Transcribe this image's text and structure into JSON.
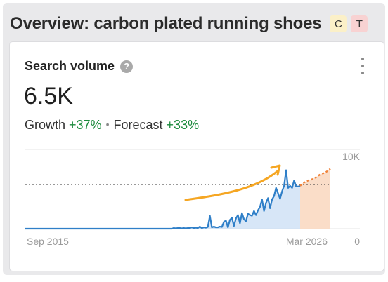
{
  "header": {
    "title": "Overview: carbon plated running shoes",
    "badges": [
      {
        "label": "C",
        "color": "#fbf0c8"
      },
      {
        "label": "T",
        "color": "#f8d2d2"
      }
    ]
  },
  "card": {
    "title": "Search volume",
    "help_icon": "question-circle-icon",
    "menu_icon": "kebab-menu-icon",
    "value": "6.5K",
    "growth_label": "Growth",
    "growth_value": "+37%",
    "forecast_label": "Forecast",
    "forecast_value": "+33%",
    "colors": {
      "positive": "#1b8a3c",
      "history_line": "#2f7fc8",
      "history_fill": "#c9def4",
      "forecast": "#f0843c",
      "forecast_fill": "#fad9c2",
      "trend_arrow": "#f5a623"
    }
  },
  "chart_data": {
    "type": "line",
    "x_start_label": "Sep 2015",
    "x_end_label": "Mar 2026",
    "y_tick_labels": [
      "10K",
      "0"
    ],
    "ylim": [
      0,
      10000
    ],
    "reference_line_value": 6500,
    "series": [
      {
        "values": [
          0,
          0,
          0,
          0,
          0,
          0,
          0,
          0,
          0,
          0,
          0,
          0,
          0,
          0,
          0,
          0,
          0,
          0,
          0,
          0,
          0,
          0,
          0,
          0,
          0,
          0,
          0,
          0,
          0,
          0,
          0,
          0,
          0,
          0,
          0,
          0,
          0,
          0,
          0,
          0,
          0,
          0,
          0,
          0,
          0,
          0,
          0,
          0,
          0,
          0,
          0,
          0,
          0,
          0,
          0,
          0,
          0,
          0,
          0,
          0,
          0,
          0,
          0,
          0,
          0,
          0,
          0,
          0,
          0,
          0,
          0,
          0,
          0,
          0,
          100,
          50,
          100,
          100,
          50,
          100,
          50,
          100,
          100,
          200,
          100,
          150,
          100,
          300,
          100,
          200,
          150,
          250,
          1900,
          200,
          300,
          200,
          200,
          300,
          250,
          1000,
          1200,
          200,
          1300,
          1600,
          400,
          1500,
          2000,
          800,
          2300,
          1400,
          1100,
          2200,
          2000,
          1900,
          2600,
          2000,
          2700,
          3200,
          4300,
          2600,
          3800,
          4500,
          3000,
          4300,
          4800,
          6000,
          5200,
          4400,
          5500,
          6300,
          8600,
          6000,
          6300,
          6000,
          7100,
          6200,
          6200,
          6300
        ]
      },
      {
        "forecast": true,
        "values": [
          6300,
          6700,
          6900,
          7100,
          7200,
          7400,
          7600,
          7900,
          8100,
          8200,
          8500,
          8800
        ]
      }
    ]
  }
}
